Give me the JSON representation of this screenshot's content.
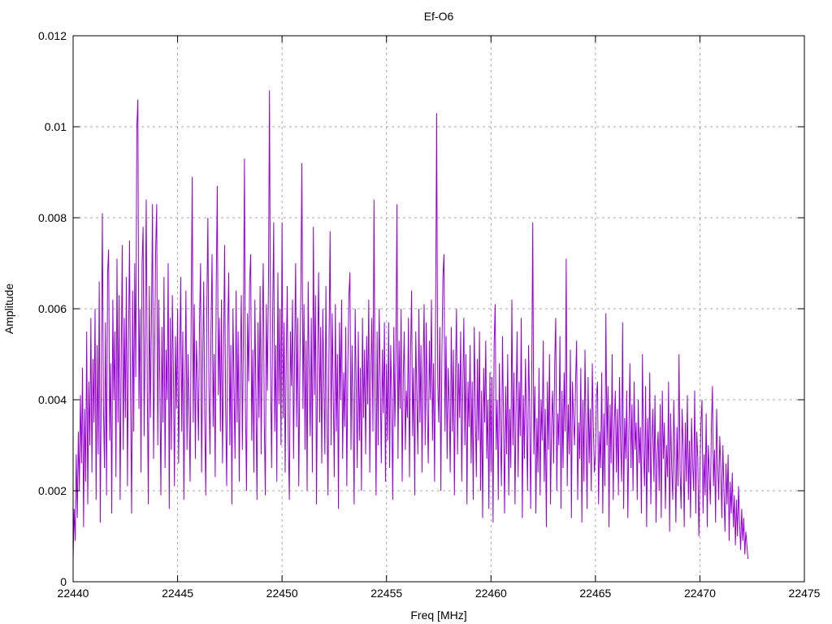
{
  "window": {
    "background": "#ffffff"
  },
  "chart_data": {
    "type": "line",
    "title": "Ef-O6",
    "xlabel": "Freq [MHz]",
    "ylabel": "Amplitude",
    "xlim": [
      22440,
      22475
    ],
    "ylim": [
      0,
      0.012
    ],
    "x_ticks": [
      22440,
      22445,
      22450,
      22455,
      22460,
      22465,
      22470,
      22475
    ],
    "x_tick_labels": [
      "22440",
      "22445",
      "22450",
      "22455",
      "22460",
      "22465",
      "22470",
      "22475"
    ],
    "y_ticks": [
      0,
      0.002,
      0.004,
      0.006,
      0.008,
      0.01,
      0.012
    ],
    "y_tick_labels": [
      "0",
      "0.002",
      "0.004",
      "0.006",
      "0.008",
      "0.01",
      "0.012"
    ],
    "grid": true,
    "grid_style": "dashed",
    "legend": "none",
    "line_color": "#9400d3",
    "grid_color": "#a8a8a8",
    "axis_color": "#000000",
    "data_extent": [
      22440.0,
      22472.3
    ],
    "major_peaks": [
      {
        "freq": 22441.4,
        "amp": 0.0081
      },
      {
        "freq": 22443.1,
        "amp": 0.0106
      },
      {
        "freq": 22445.7,
        "amp": 0.0089
      },
      {
        "freq": 22446.9,
        "amp": 0.0087
      },
      {
        "freq": 22448.2,
        "amp": 0.0093
      },
      {
        "freq": 22449.4,
        "amp": 0.0108
      },
      {
        "freq": 22451.0,
        "amp": 0.0092
      },
      {
        "freq": 22454.4,
        "amp": 0.0084
      },
      {
        "freq": 22455.5,
        "amp": 0.0083
      },
      {
        "freq": 22457.4,
        "amp": 0.0103
      },
      {
        "freq": 22462.0,
        "amp": 0.0079
      },
      {
        "freq": 22463.6,
        "amp": 0.0071
      },
      {
        "freq": 22465.5,
        "amp": 0.0059
      },
      {
        "freq": 22469.0,
        "amp": 0.005
      }
    ],
    "series": [
      {
        "name": "Ef-O6",
        "x_start": 22440.0,
        "x_step": 0.05,
        "y_scale": 0.0001,
        "y": [
          5,
          16,
          9,
          28,
          14,
          33,
          20,
          41,
          26,
          47,
          12,
          38,
          22,
          55,
          17,
          44,
          30,
          58,
          24,
          49,
          35,
          60,
          18,
          52,
          28,
          66,
          13,
          45,
          81,
          39,
          25,
          57,
          19,
          68,
          73,
          31,
          48,
          15,
          62,
          40,
          55,
          23,
          71,
          35,
          63,
          18,
          47,
          74,
          29,
          58,
          36,
          67,
          21,
          52,
          75,
          40,
          15,
          64,
          33,
          70,
          45,
          100,
          106,
          38,
          60,
          24,
          70,
          78,
          32,
          55,
          84,
          42,
          17,
          65,
          36,
          58,
          83,
          27,
          49,
          73,
          83,
          30,
          62,
          44,
          19,
          56,
          35,
          67,
          25,
          51,
          40,
          70,
          16,
          58,
          29,
          63,
          46,
          21,
          54,
          38,
          60,
          26,
          47,
          67,
          33,
          55,
          18,
          42,
          64,
          29,
          50,
          37,
          22,
          58,
          89,
          35,
          61,
          27,
          53,
          44,
          31,
          57,
          70,
          24,
          48,
          66,
          36,
          19,
          61,
          80,
          43,
          28,
          55,
          72,
          34,
          50,
          23,
          65,
          87,
          41,
          58,
          33,
          62,
          26,
          49,
          74,
          38,
          21,
          56,
          68,
          30,
          52,
          17,
          60,
          43,
          27,
          64,
          35,
          55,
          22,
          47,
          63,
          29,
          54,
          93,
          38,
          20,
          59,
          44,
          66,
          72,
          31,
          51,
          24,
          62,
          40,
          18,
          57,
          36,
          65,
          28,
          54,
          70,
          35,
          19,
          61,
          42,
          66,
          108,
          48,
          25,
          58,
          79,
          33,
          52,
          22,
          68,
          39,
          60,
          30,
          79,
          36,
          57,
          24,
          49,
          65,
          31,
          18,
          55,
          43,
          62,
          27,
          50,
          70,
          34,
          58,
          21,
          46,
          64,
          92,
          38,
          61,
          29,
          53,
          20,
          66,
          45,
          32,
          58,
          24,
          78,
          41,
          63,
          17,
          49,
          68,
          35,
          56,
          26,
          60,
          44,
          28,
          65,
          37,
          19,
          54,
          77,
          30,
          59,
          42,
          23,
          61,
          33,
          50,
          16,
          57,
          40,
          62,
          27,
          46,
          34,
          56,
          21,
          48,
          63,
          68,
          29,
          52,
          38,
          17,
          60,
          43,
          25,
          55,
          31,
          47,
          20,
          58,
          36,
          51,
          28,
          54,
          39,
          62,
          24,
          46,
          58,
          33,
          84,
          42,
          19,
          55,
          30,
          60,
          44,
          26,
          51,
          37,
          57,
          22,
          48,
          31,
          57,
          25,
          52,
          40,
          18,
          56,
          34,
          49,
          83,
          27,
          53,
          38,
          60,
          22,
          45,
          55,
          29,
          42,
          36,
          58,
          23,
          50,
          64,
          32,
          47,
          19,
          55,
          41,
          28,
          60,
          35,
          52,
          24,
          46,
          61,
          30,
          57,
          38,
          26,
          53,
          40,
          62,
          31,
          48,
          22,
          58,
          103,
          44,
          35,
          56,
          20,
          50,
          67,
          72,
          33,
          54,
          27,
          47,
          39,
          24,
          56,
          33,
          51,
          19,
          45,
          60,
          28,
          48,
          36,
          55,
          22,
          42,
          58,
          30,
          50,
          17,
          44,
          34,
          52,
          26,
          44,
          18,
          56,
          38,
          23,
          49,
          31,
          55,
          20,
          42,
          14,
          47,
          35,
          53,
          27,
          40,
          16,
          46,
          24,
          45,
          13,
          52,
          61,
          29,
          40,
          18,
          48,
          33,
          21,
          54,
          36,
          15,
          43,
          28,
          50,
          19,
          38,
          25,
          62,
          30,
          46,
          17,
          39,
          55,
          23,
          44,
          32,
          58,
          14,
          41,
          27,
          49,
          35,
          20,
          52,
          38,
          16,
          45,
          79,
          28,
          43,
          15,
          36,
          24,
          47,
          19,
          40,
          31,
          53,
          22,
          38,
          12,
          44,
          29,
          50,
          17,
          35,
          42,
          26,
          48,
          58,
          20,
          37,
          30,
          54,
          16,
          42,
          25,
          46,
          33,
          71,
          21,
          39,
          28,
          51,
          14,
          44,
          36,
          30,
          44,
          53,
          18,
          35,
          27,
          47,
          13,
          40,
          22,
          51,
          32,
          16,
          45,
          26,
          38,
          20,
          48,
          34,
          24,
          28,
          41,
          44,
          17,
          33,
          25,
          46,
          15,
          37,
          21,
          59,
          30,
          43,
          12,
          39,
          26,
          50,
          18,
          34,
          42,
          24,
          38,
          19,
          45,
          31,
          22,
          57,
          16,
          36,
          27,
          42,
          14,
          33,
          48,
          25,
          39,
          20,
          44,
          29,
          35,
          18,
          40,
          26,
          34,
          15,
          50,
          29,
          21,
          43,
          12,
          36,
          24,
          46,
          17,
          31,
          38,
          22,
          41,
          13,
          28,
          33,
          20,
          39,
          14,
          42,
          27,
          35,
          16,
          30,
          23,
          44,
          11,
          37,
          25,
          18,
          40,
          28,
          13,
          34,
          21,
          50,
          24,
          16,
          38,
          29,
          12,
          35,
          22,
          41,
          18,
          31,
          14,
          36,
          26,
          20,
          42,
          15,
          33,
          27,
          10,
          23,
          35,
          40,
          15,
          28,
          19,
          37,
          12,
          30,
          24,
          17,
          34,
          43,
          21,
          29,
          13,
          38,
          26,
          18,
          32,
          25,
          14,
          30,
          20,
          11,
          26,
          17,
          28,
          9,
          22,
          15,
          24,
          12,
          19,
          8,
          18,
          10,
          21,
          13,
          7,
          16,
          9,
          14,
          6,
          11,
          8,
          5
        ]
      }
    ]
  }
}
